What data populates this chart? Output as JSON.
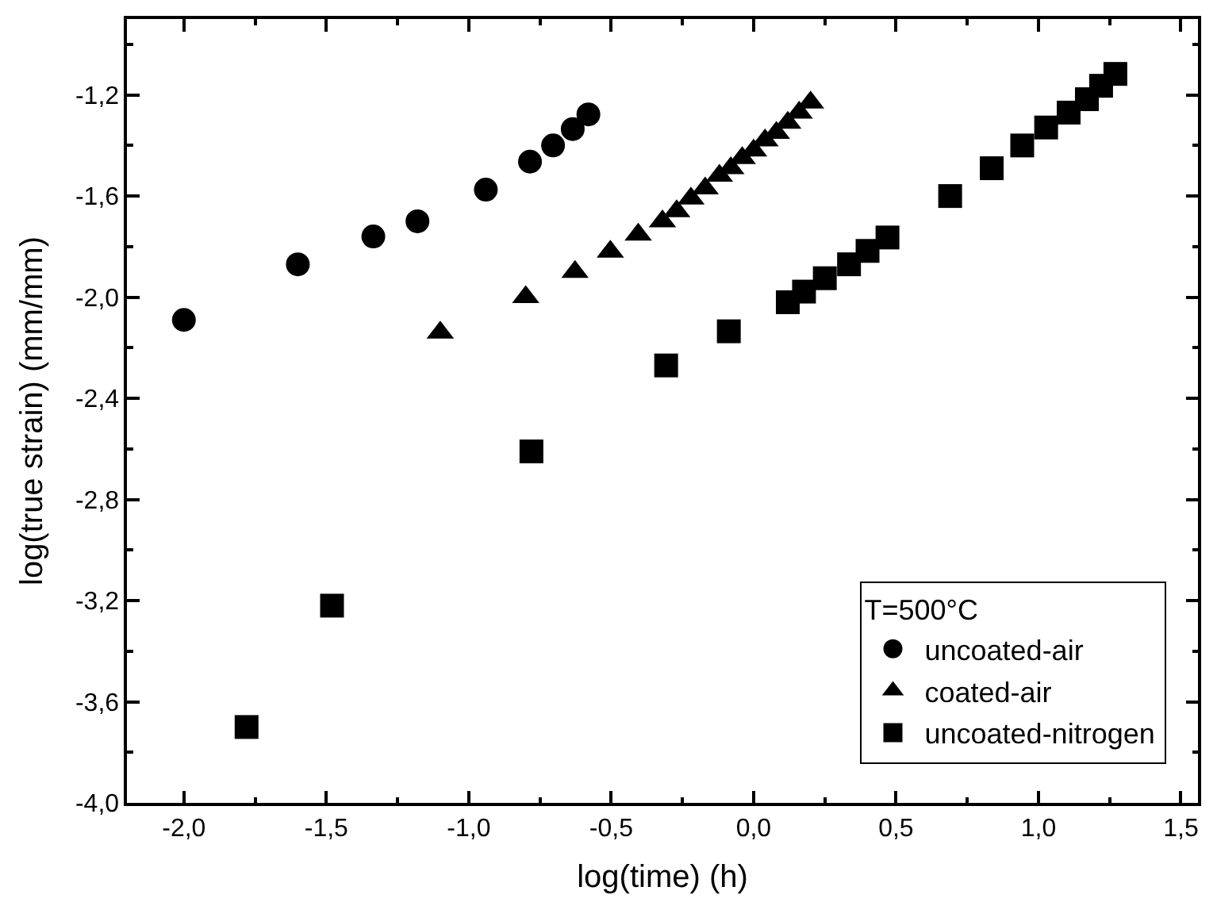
{
  "chart_data": {
    "type": "scatter",
    "xlabel": "log(time) (h)",
    "ylabel": "log(true strain) (mm/mm)",
    "legend_title": "T=500°C",
    "xlim": [
      -2.2,
      1.56
    ],
    "ylim": [
      -4.0,
      -0.9
    ],
    "xticks": [
      {
        "value": -2.0,
        "label": "-2,0"
      },
      {
        "value": -1.75,
        "label": null
      },
      {
        "value": -1.5,
        "label": "-1,5"
      },
      {
        "value": -1.25,
        "label": null
      },
      {
        "value": -1.0,
        "label": "-1,0"
      },
      {
        "value": -0.75,
        "label": null
      },
      {
        "value": -0.5,
        "label": "-0,5"
      },
      {
        "value": -0.25,
        "label": null
      },
      {
        "value": 0.0,
        "label": "0,0"
      },
      {
        "value": 0.25,
        "label": null
      },
      {
        "value": 0.5,
        "label": "0,5"
      },
      {
        "value": 0.75,
        "label": null
      },
      {
        "value": 1.0,
        "label": "1,0"
      },
      {
        "value": 1.25,
        "label": null
      },
      {
        "value": 1.5,
        "label": "1,5"
      }
    ],
    "yticks": [
      {
        "value": -4.0,
        "label": "-4,0"
      },
      {
        "value": -3.8,
        "label": null
      },
      {
        "value": -3.6,
        "label": "-3,6"
      },
      {
        "value": -3.4,
        "label": null
      },
      {
        "value": -3.2,
        "label": "-3,2"
      },
      {
        "value": -3.0,
        "label": null
      },
      {
        "value": -2.8,
        "label": "-2,8"
      },
      {
        "value": -2.6,
        "label": null
      },
      {
        "value": -2.4,
        "label": "-2,4"
      },
      {
        "value": -2.2,
        "label": null
      },
      {
        "value": -2.0,
        "label": "-2,0"
      },
      {
        "value": -1.8,
        "label": null
      },
      {
        "value": -1.6,
        "label": "-1,6"
      },
      {
        "value": -1.4,
        "label": null
      },
      {
        "value": -1.2,
        "label": "-1,2"
      },
      {
        "value": -1.0,
        "label": null
      }
    ],
    "legend": "bottom right",
    "series": [
      {
        "name": "uncoated-air",
        "color": "#000000",
        "marker": "circle",
        "x": [
          -2.0,
          -1.6,
          -1.335,
          -1.18,
          -0.94,
          -0.785,
          -0.704,
          -0.635,
          -0.58
        ],
        "values": [
          -2.09,
          -1.87,
          -1.76,
          -1.7,
          -1.575,
          -1.464,
          -1.4,
          -1.335,
          -1.277
        ]
      },
      {
        "name": "coated-air",
        "color": "#000000",
        "marker": "triangle",
        "x": [
          -1.1,
          -0.8,
          -0.627,
          -0.503,
          -0.405,
          -0.32,
          -0.27,
          -0.22,
          -0.17,
          -0.12,
          -0.08,
          -0.04,
          0.0,
          0.04,
          0.08,
          0.12,
          0.16,
          0.2
        ],
        "values": [
          -2.14,
          -2.0,
          -1.9,
          -1.82,
          -1.753,
          -1.7,
          -1.66,
          -1.61,
          -1.57,
          -1.52,
          -1.49,
          -1.45,
          -1.42,
          -1.38,
          -1.35,
          -1.31,
          -1.27,
          -1.23
        ]
      },
      {
        "name": "uncoated-nitrogen",
        "color": "#000000",
        "marker": "square",
        "x": [
          -1.78,
          -1.48,
          -0.78,
          -0.307,
          -0.087,
          0.12,
          0.177,
          0.25,
          0.335,
          0.4,
          0.47,
          0.69,
          0.836,
          0.943,
          1.027,
          1.106,
          1.17,
          1.22,
          1.27
        ],
        "values": [
          -3.7,
          -3.22,
          -2.61,
          -2.27,
          -2.135,
          -2.02,
          -1.978,
          -1.925,
          -1.87,
          -1.817,
          -1.764,
          -1.6,
          -1.49,
          -1.4,
          -1.329,
          -1.27,
          -1.217,
          -1.164,
          -1.117
        ]
      }
    ]
  }
}
